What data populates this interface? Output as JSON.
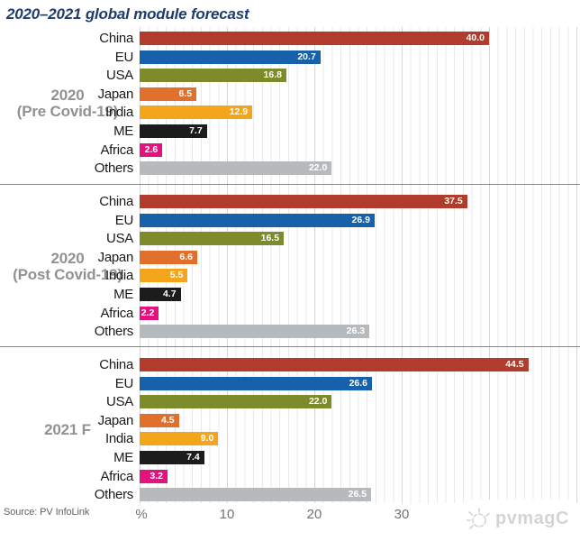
{
  "header": {
    "title": "2020–2021 global module forecast"
  },
  "axis": {
    "unit_label": "%",
    "ticks": [
      10,
      20,
      30
    ]
  },
  "footer": {
    "source": "Source: PV InfoLink",
    "watermark": "pvmagC"
  },
  "chart_data": {
    "type": "bar",
    "orientation": "horizontal",
    "title": "2020–2021 global module forecast",
    "xlabel": "%",
    "xlim": [
      0,
      50
    ],
    "xticks": [
      10,
      20,
      30
    ],
    "gridline_interval": 1,
    "grid": true,
    "value_decimals": 1,
    "categories": [
      "China",
      "EU",
      "USA",
      "Japan",
      "India",
      "ME",
      "Africa",
      "Others"
    ],
    "category_colors": {
      "China": "#b23c2b",
      "EU": "#1661a9",
      "USA": "#7d8b2a",
      "Japan": "#e2702d",
      "India": "#f3a61c",
      "ME": "#1c1c1c",
      "Africa": "#e4127e",
      "Others": "#b6babd"
    },
    "groups": [
      {
        "name": "2020 (Pre Covid-19)",
        "label_lines": [
          "2020",
          "(Pre Covid-19)"
        ],
        "values": [
          40.0,
          20.7,
          16.8,
          6.5,
          12.9,
          7.7,
          2.6,
          22.0
        ]
      },
      {
        "name": "2020 (Post Covid-19)",
        "label_lines": [
          "2020",
          "(Post Covid-19)"
        ],
        "values": [
          37.5,
          26.9,
          16.5,
          6.6,
          5.5,
          4.7,
          2.2,
          26.3
        ]
      },
      {
        "name": "2021 F",
        "label_lines": [
          "2021 F"
        ],
        "values": [
          44.5,
          26.6,
          22.0,
          4.5,
          9.0,
          7.4,
          3.2,
          26.5
        ]
      }
    ],
    "source": "Source: PV InfoLink"
  }
}
